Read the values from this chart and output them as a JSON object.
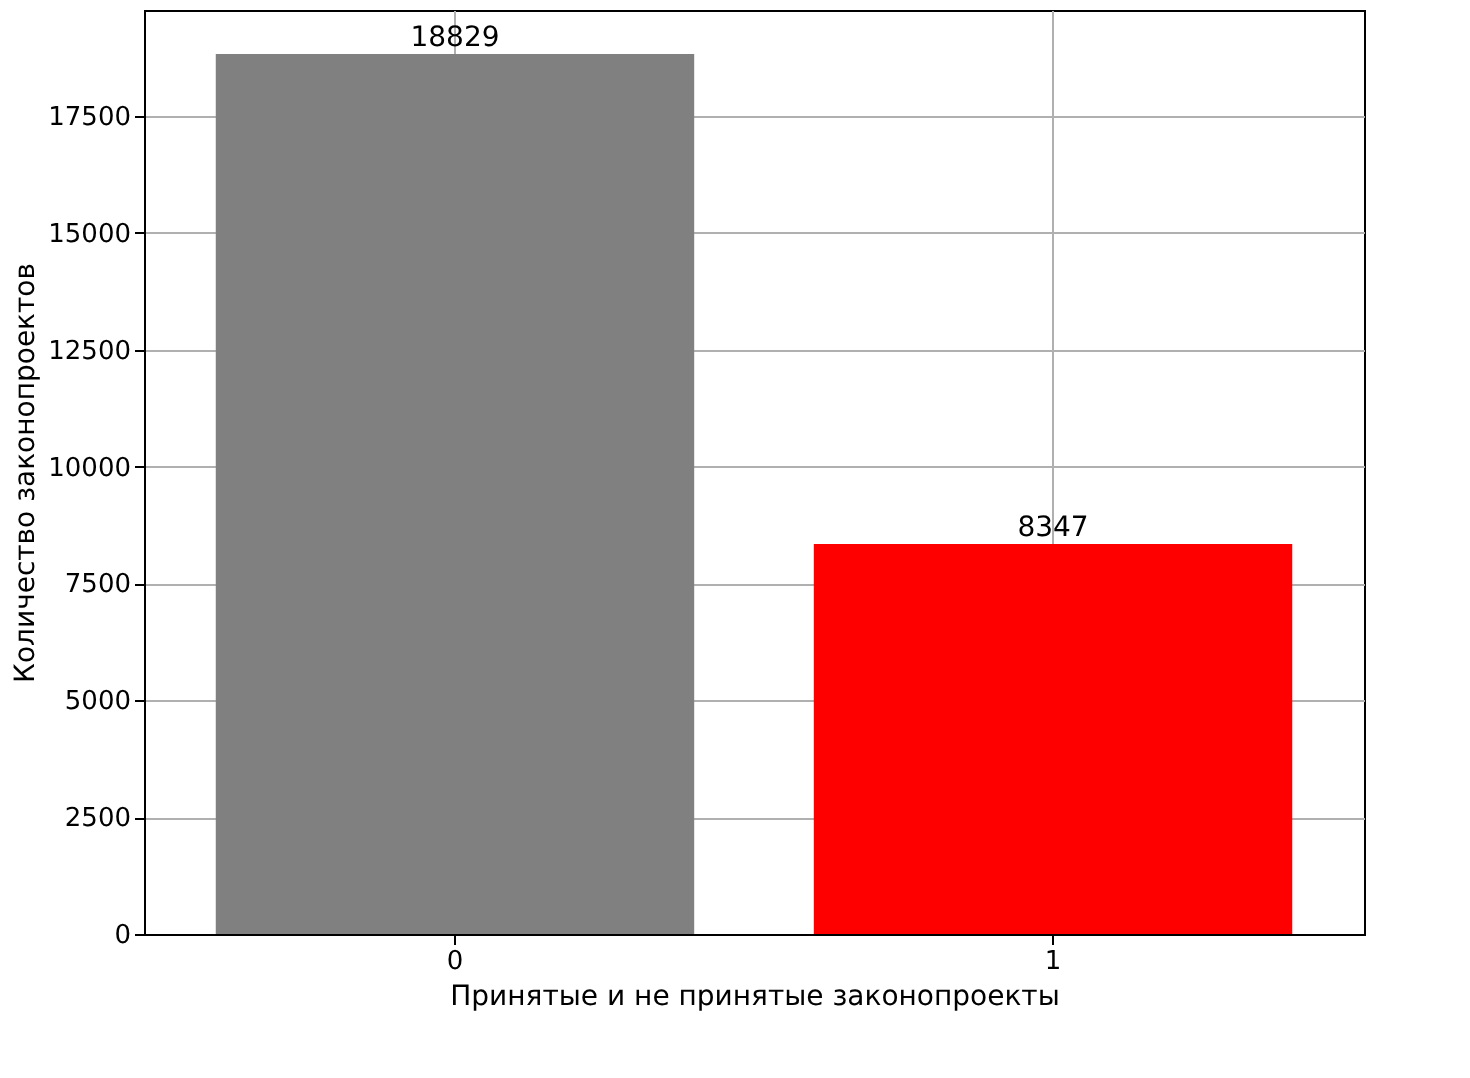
{
  "chart_data": {
    "type": "bar",
    "xlabel": "Принятые и не принятые законопроекты",
    "ylabel": "Количество законопроектов",
    "categories": [
      "0",
      "1"
    ],
    "values": [
      18829,
      8347
    ],
    "colors": [
      "#808080",
      "#ff0000"
    ],
    "ylim": [
      0,
      19770
    ],
    "yticks": [
      0,
      2500,
      5000,
      7500,
      10000,
      12500,
      15000,
      17500
    ],
    "grid": true,
    "data_labels": true
  }
}
